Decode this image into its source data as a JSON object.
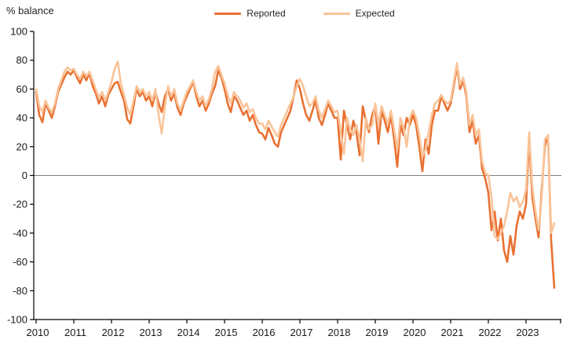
{
  "header": {
    "title": "% balance"
  },
  "chart_data": {
    "type": "line",
    "title": "% balance",
    "ylabel": "% balance",
    "xlabel": "",
    "x_unit": "month",
    "x_start": "2010-01",
    "x_end": "2023-10",
    "x_tick_labels": [
      "2010",
      "2011",
      "2012",
      "2013",
      "2014",
      "2015",
      "2016",
      "2017",
      "2018",
      "2019",
      "2020",
      "2021",
      "2022",
      "2023"
    ],
    "ylim": [
      -100,
      100
    ],
    "y_ticks": [
      100,
      80,
      60,
      40,
      20,
      0,
      -20,
      -40,
      -60,
      -80,
      -100
    ],
    "grid": false,
    "zero_line": true,
    "zero_line_color": "#808080",
    "axis_color": "#000000",
    "legend_position": "top-center",
    "series": [
      {
        "name": "Reported",
        "color": "#e97132",
        "values": [
          58,
          42,
          37,
          50,
          45,
          40,
          48,
          58,
          63,
          68,
          72,
          70,
          73,
          68,
          64,
          70,
          66,
          71,
          62,
          57,
          50,
          55,
          48,
          56,
          60,
          64,
          65,
          58,
          52,
          39,
          36,
          48,
          60,
          55,
          58,
          52,
          55,
          48,
          58,
          50,
          44,
          55,
          60,
          52,
          57,
          47,
          42,
          50,
          55,
          60,
          65,
          55,
          48,
          52,
          45,
          50,
          57,
          62,
          73,
          68,
          60,
          50,
          44,
          55,
          52,
          47,
          42,
          45,
          38,
          42,
          35,
          30,
          29,
          25,
          33,
          28,
          22,
          20,
          30,
          35,
          40,
          45,
          55,
          66,
          60,
          50,
          42,
          38,
          45,
          52,
          40,
          35,
          42,
          50,
          45,
          40,
          40,
          11,
          45,
          35,
          25,
          38,
          30,
          14,
          48,
          38,
          30,
          42,
          48,
          22,
          45,
          38,
          30,
          42,
          25,
          6,
          35,
          28,
          40,
          35,
          42,
          35,
          20,
          3,
          25,
          15,
          35,
          45,
          45,
          55,
          50,
          45,
          50,
          62,
          76,
          60,
          66,
          55,
          30,
          38,
          22,
          28,
          5,
          -2,
          -12,
          -38,
          -25,
          -45,
          -30,
          -52,
          -60,
          -42,
          -55,
          -35,
          -25,
          -30,
          -20,
          25,
          -15,
          -30,
          -43,
          -10,
          20,
          28,
          -45,
          -78
        ]
      },
      {
        "name": "Expected",
        "color": "#f9c499",
        "values": [
          60,
          48,
          44,
          52,
          47,
          44,
          50,
          60,
          66,
          72,
          75,
          73,
          74,
          70,
          67,
          72,
          69,
          72,
          66,
          60,
          54,
          58,
          52,
          58,
          65,
          74,
          79,
          64,
          56,
          47,
          42,
          52,
          62,
          58,
          60,
          55,
          58,
          52,
          60,
          42,
          29,
          48,
          62,
          55,
          60,
          50,
          45,
          52,
          58,
          62,
          66,
          58,
          52,
          55,
          48,
          53,
          60,
          72,
          76,
          70,
          64,
          56,
          50,
          58,
          55,
          52,
          47,
          50,
          44,
          46,
          40,
          36,
          36,
          32,
          38,
          34,
          30,
          27,
          35,
          40,
          45,
          50,
          55,
          62,
          67,
          62,
          55,
          48,
          50,
          55,
          45,
          40,
          46,
          52,
          48,
          44,
          45,
          30,
          15,
          40,
          32,
          28,
          35,
          25,
          10,
          40,
          32,
          35,
          50,
          35,
          48,
          42,
          36,
          45,
          32,
          18,
          40,
          33,
          20,
          40,
          45,
          40,
          28,
          13,
          18,
          30,
          42,
          50,
          52,
          56,
          52,
          50,
          52,
          65,
          78,
          63,
          68,
          58,
          35,
          42,
          28,
          32,
          10,
          2,
          0,
          -15,
          -42,
          -44,
          -40,
          -35,
          -25,
          -12,
          -18,
          -15,
          -22,
          -18,
          -10,
          30,
          -8,
          -25,
          -38,
          -15,
          25,
          28,
          -40,
          -33
        ]
      }
    ]
  }
}
